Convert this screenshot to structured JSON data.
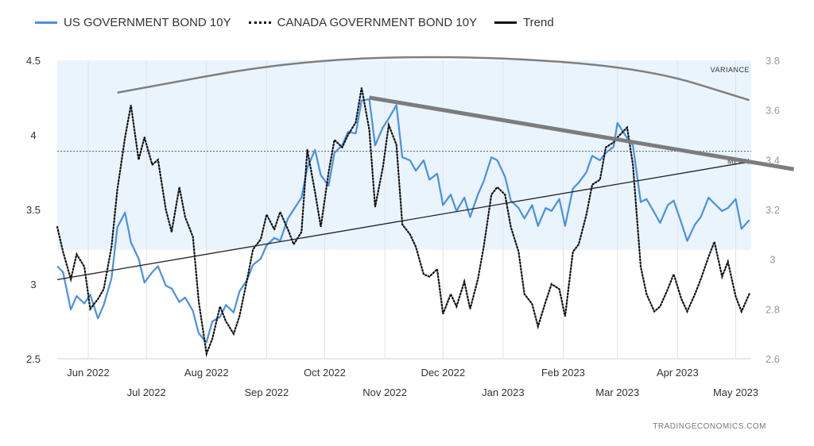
{
  "legend": {
    "us_label": "US GOVERNMENT BOND 10Y",
    "canada_label": "CANADA GOVERNMENT BOND 10Y",
    "trend_label": "Trend"
  },
  "credit": "TRADINGECONOMICS.COM",
  "annotations": {
    "variance": "VARIANCE",
    "mean": "MEAN"
  },
  "colors": {
    "us": "#4a90e2",
    "canada": "#111111",
    "trend": "#222222",
    "band": "#eaf4fd",
    "variance_arc": "#7f7f7f"
  },
  "chart_data": {
    "type": "line",
    "x_unit": "date",
    "xlim": [
      "2022-05-16",
      "2023-05-09"
    ],
    "x_ticks": [
      {
        "label": "Jun 2022",
        "date": "2022-06-01",
        "row": 1
      },
      {
        "label": "Jul 2022",
        "date": "2022-07-01",
        "row": 2
      },
      {
        "label": "Aug 2022",
        "date": "2022-08-01",
        "row": 1
      },
      {
        "label": "Sep 2022",
        "date": "2022-09-01",
        "row": 2
      },
      {
        "label": "Oct 2022",
        "date": "2022-10-01",
        "row": 1
      },
      {
        "label": "Nov 2022",
        "date": "2022-11-01",
        "row": 2
      },
      {
        "label": "Dec 2022",
        "date": "2022-12-01",
        "row": 1
      },
      {
        "label": "Jan 2023",
        "date": "2023-01-01",
        "row": 2
      },
      {
        "label": "Feb 2023",
        "date": "2023-02-01",
        "row": 1
      },
      {
        "label": "Mar 2023",
        "date": "2023-03-01",
        "row": 2
      },
      {
        "label": "Apr 2023",
        "date": "2023-04-01",
        "row": 1
      },
      {
        "label": "May 2023",
        "date": "2023-05-01",
        "row": 2
      }
    ],
    "y_left": {
      "min": 2.5,
      "max": 4.5,
      "ticks": [
        "2.5",
        "3",
        "3.5",
        "4",
        "4.5"
      ]
    },
    "y_right": {
      "min": 2.6,
      "max": 3.8,
      "ticks": [
        "2.6",
        "2.8",
        "3",
        "3.2",
        "3.4",
        "3.6",
        "3.8"
      ]
    },
    "grid": "vertical",
    "legend_position": "top-left",
    "band": {
      "axis": "left",
      "lower": 3.23,
      "upper": 4.5
    },
    "mean": {
      "axis": "left",
      "value": 3.89
    },
    "series": [
      {
        "name": "US GOVERNMENT BOND 10Y",
        "axis": "left",
        "style": "solid",
        "points": [
          [
            "2022-05-16",
            3.12
          ],
          [
            "2022-05-19",
            3.08
          ],
          [
            "2022-05-23",
            2.83
          ],
          [
            "2022-05-26",
            2.92
          ],
          [
            "2022-05-30",
            2.87
          ],
          [
            "2022-06-02",
            2.93
          ],
          [
            "2022-06-06",
            2.77
          ],
          [
            "2022-06-09",
            2.86
          ],
          [
            "2022-06-13",
            3.04
          ],
          [
            "2022-06-16",
            3.38
          ],
          [
            "2022-06-20",
            3.48
          ],
          [
            "2022-06-23",
            3.28
          ],
          [
            "2022-06-27",
            3.17
          ],
          [
            "2022-06-30",
            3.01
          ],
          [
            "2022-07-04",
            3.08
          ],
          [
            "2022-07-07",
            3.12
          ],
          [
            "2022-07-11",
            2.99
          ],
          [
            "2022-07-14",
            2.97
          ],
          [
            "2022-07-18",
            2.88
          ],
          [
            "2022-07-21",
            2.91
          ],
          [
            "2022-07-25",
            2.82
          ],
          [
            "2022-07-28",
            2.67
          ],
          [
            "2022-08-01",
            2.61
          ],
          [
            "2022-08-04",
            2.75
          ],
          [
            "2022-08-08",
            2.78
          ],
          [
            "2022-08-11",
            2.86
          ],
          [
            "2022-08-15",
            2.81
          ],
          [
            "2022-08-18",
            2.95
          ],
          [
            "2022-08-22",
            3.03
          ],
          [
            "2022-08-25",
            3.13
          ],
          [
            "2022-08-29",
            3.17
          ],
          [
            "2022-09-01",
            3.26
          ],
          [
            "2022-09-05",
            3.31
          ],
          [
            "2022-09-08",
            3.29
          ],
          [
            "2022-09-12",
            3.44
          ],
          [
            "2022-09-15",
            3.5
          ],
          [
            "2022-09-19",
            3.58
          ],
          [
            "2022-09-22",
            3.78
          ],
          [
            "2022-09-26",
            3.9
          ],
          [
            "2022-09-29",
            3.73
          ],
          [
            "2022-10-03",
            3.66
          ],
          [
            "2022-10-06",
            3.88
          ],
          [
            "2022-10-10",
            3.93
          ],
          [
            "2022-10-13",
            4.02
          ],
          [
            "2022-10-17",
            4.01
          ],
          [
            "2022-10-20",
            4.23
          ],
          [
            "2022-10-24",
            4.24
          ],
          [
            "2022-10-27",
            3.93
          ],
          [
            "2022-10-31",
            4.05
          ],
          [
            "2022-11-03",
            4.11
          ],
          [
            "2022-11-07",
            4.2
          ],
          [
            "2022-11-10",
            3.85
          ],
          [
            "2022-11-14",
            3.83
          ],
          [
            "2022-11-17",
            3.76
          ],
          [
            "2022-11-21",
            3.83
          ],
          [
            "2022-11-24",
            3.7
          ],
          [
            "2022-11-28",
            3.74
          ],
          [
            "2022-12-01",
            3.53
          ],
          [
            "2022-12-05",
            3.6
          ],
          [
            "2022-12-08",
            3.49
          ],
          [
            "2022-12-12",
            3.58
          ],
          [
            "2022-12-15",
            3.45
          ],
          [
            "2022-12-19",
            3.6
          ],
          [
            "2022-12-22",
            3.69
          ],
          [
            "2022-12-26",
            3.85
          ],
          [
            "2022-12-29",
            3.83
          ],
          [
            "2023-01-02",
            3.72
          ],
          [
            "2023-01-05",
            3.56
          ],
          [
            "2023-01-09",
            3.51
          ],
          [
            "2023-01-12",
            3.44
          ],
          [
            "2023-01-16",
            3.53
          ],
          [
            "2023-01-19",
            3.39
          ],
          [
            "2023-01-23",
            3.51
          ],
          [
            "2023-01-26",
            3.49
          ],
          [
            "2023-01-30",
            3.57
          ],
          [
            "2023-02-02",
            3.39
          ],
          [
            "2023-02-06",
            3.64
          ],
          [
            "2023-02-09",
            3.68
          ],
          [
            "2023-02-13",
            3.75
          ],
          [
            "2023-02-16",
            3.86
          ],
          [
            "2023-02-20",
            3.83
          ],
          [
            "2023-02-23",
            3.88
          ],
          [
            "2023-02-27",
            3.92
          ],
          [
            "2023-03-01",
            4.08
          ],
          [
            "2023-03-06",
            3.98
          ],
          [
            "2023-03-09",
            3.93
          ],
          [
            "2023-03-13",
            3.55
          ],
          [
            "2023-03-16",
            3.57
          ],
          [
            "2023-03-20",
            3.48
          ],
          [
            "2023-03-23",
            3.41
          ],
          [
            "2023-03-27",
            3.53
          ],
          [
            "2023-03-30",
            3.56
          ],
          [
            "2023-04-03",
            3.41
          ],
          [
            "2023-04-06",
            3.29
          ],
          [
            "2023-04-10",
            3.4
          ],
          [
            "2023-04-13",
            3.45
          ],
          [
            "2023-04-17",
            3.58
          ],
          [
            "2023-04-20",
            3.54
          ],
          [
            "2023-04-24",
            3.49
          ],
          [
            "2023-04-27",
            3.51
          ],
          [
            "2023-05-01",
            3.57
          ],
          [
            "2023-05-04",
            3.37
          ],
          [
            "2023-05-08",
            3.43
          ]
        ]
      },
      {
        "name": "CANADA GOVERNMENT BOND 10Y",
        "axis": "right",
        "style": "dotted",
        "points": [
          [
            "2022-05-16",
            3.13
          ],
          [
            "2022-05-19",
            3.03
          ],
          [
            "2022-05-23",
            2.92
          ],
          [
            "2022-05-26",
            3.02
          ],
          [
            "2022-05-30",
            2.97
          ],
          [
            "2022-06-02",
            2.8
          ],
          [
            "2022-06-06",
            2.84
          ],
          [
            "2022-06-09",
            2.88
          ],
          [
            "2022-06-13",
            3.05
          ],
          [
            "2022-06-16",
            3.28
          ],
          [
            "2022-06-20",
            3.49
          ],
          [
            "2022-06-23",
            3.62
          ],
          [
            "2022-06-27",
            3.4
          ],
          [
            "2022-06-30",
            3.49
          ],
          [
            "2022-07-04",
            3.38
          ],
          [
            "2022-07-07",
            3.4
          ],
          [
            "2022-07-11",
            3.2
          ],
          [
            "2022-07-14",
            3.11
          ],
          [
            "2022-07-18",
            3.29
          ],
          [
            "2022-07-21",
            3.17
          ],
          [
            "2022-07-25",
            3.09
          ],
          [
            "2022-07-28",
            2.83
          ],
          [
            "2022-08-01",
            2.62
          ],
          [
            "2022-08-04",
            2.68
          ],
          [
            "2022-08-08",
            2.81
          ],
          [
            "2022-08-11",
            2.75
          ],
          [
            "2022-08-15",
            2.7
          ],
          [
            "2022-08-18",
            2.77
          ],
          [
            "2022-08-22",
            2.92
          ],
          [
            "2022-08-25",
            3.04
          ],
          [
            "2022-08-29",
            3.08
          ],
          [
            "2022-09-01",
            3.18
          ],
          [
            "2022-09-05",
            3.12
          ],
          [
            "2022-09-08",
            3.19
          ],
          [
            "2022-09-12",
            3.12
          ],
          [
            "2022-09-15",
            3.06
          ],
          [
            "2022-09-19",
            3.11
          ],
          [
            "2022-09-22",
            3.44
          ],
          [
            "2022-09-26",
            3.27
          ],
          [
            "2022-09-29",
            3.13
          ],
          [
            "2022-10-03",
            3.35
          ],
          [
            "2022-10-06",
            3.48
          ],
          [
            "2022-10-10",
            3.45
          ],
          [
            "2022-10-13",
            3.5
          ],
          [
            "2022-10-17",
            3.55
          ],
          [
            "2022-10-20",
            3.69
          ],
          [
            "2022-10-24",
            3.52
          ],
          [
            "2022-10-27",
            3.21
          ],
          [
            "2022-10-31",
            3.37
          ],
          [
            "2022-11-03",
            3.54
          ],
          [
            "2022-11-07",
            3.46
          ],
          [
            "2022-11-10",
            3.14
          ],
          [
            "2022-11-14",
            3.1
          ],
          [
            "2022-11-17",
            3.05
          ],
          [
            "2022-11-21",
            2.94
          ],
          [
            "2022-11-24",
            2.93
          ],
          [
            "2022-11-28",
            2.96
          ],
          [
            "2022-12-01",
            2.78
          ],
          [
            "2022-12-05",
            2.86
          ],
          [
            "2022-12-08",
            2.81
          ],
          [
            "2022-12-12",
            2.91
          ],
          [
            "2022-12-15",
            2.8
          ],
          [
            "2022-12-19",
            2.92
          ],
          [
            "2022-12-22",
            3.05
          ],
          [
            "2022-12-26",
            3.26
          ],
          [
            "2022-12-29",
            3.29
          ],
          [
            "2023-01-02",
            3.26
          ],
          [
            "2023-01-05",
            3.13
          ],
          [
            "2023-01-09",
            3.03
          ],
          [
            "2023-01-12",
            2.86
          ],
          [
            "2023-01-16",
            2.82
          ],
          [
            "2023-01-19",
            2.73
          ],
          [
            "2023-01-23",
            2.83
          ],
          [
            "2023-01-26",
            2.9
          ],
          [
            "2023-01-30",
            2.88
          ],
          [
            "2023-02-02",
            2.77
          ],
          [
            "2023-02-06",
            3.03
          ],
          [
            "2023-02-09",
            3.06
          ],
          [
            "2023-02-13",
            3.18
          ],
          [
            "2023-02-16",
            3.3
          ],
          [
            "2023-02-20",
            3.32
          ],
          [
            "2023-02-23",
            3.45
          ],
          [
            "2023-02-27",
            3.47
          ],
          [
            "2023-03-01",
            3.49
          ],
          [
            "2023-03-06",
            3.53
          ],
          [
            "2023-03-09",
            3.38
          ],
          [
            "2023-03-13",
            2.97
          ],
          [
            "2023-03-16",
            2.86
          ],
          [
            "2023-03-20",
            2.79
          ],
          [
            "2023-03-23",
            2.81
          ],
          [
            "2023-03-27",
            2.88
          ],
          [
            "2023-03-30",
            2.94
          ],
          [
            "2023-04-03",
            2.84
          ],
          [
            "2023-04-06",
            2.79
          ],
          [
            "2023-04-10",
            2.86
          ],
          [
            "2023-04-13",
            2.92
          ],
          [
            "2023-04-17",
            3.01
          ],
          [
            "2023-04-20",
            3.07
          ],
          [
            "2023-04-24",
            2.93
          ],
          [
            "2023-04-27",
            2.99
          ],
          [
            "2023-05-01",
            2.85
          ],
          [
            "2023-05-04",
            2.79
          ],
          [
            "2023-05-08",
            2.86
          ]
        ]
      },
      {
        "name": "Trend",
        "axis": "left",
        "style": "solid",
        "points": [
          [
            "2022-05-16",
            3.03
          ],
          [
            "2023-05-08",
            3.82
          ]
        ]
      }
    ],
    "overlays": [
      {
        "kind": "declining-line",
        "axis": "left",
        "style": "thick-grey",
        "points": [
          [
            "2022-10-24",
            4.25
          ],
          [
            "2023-05-31",
            3.77
          ]
        ]
      },
      {
        "kind": "variance-arc",
        "axis": "right",
        "points": [
          [
            "2022-06-16",
            3.67
          ],
          [
            "2022-09-15",
            3.8
          ],
          [
            "2022-12-15",
            3.82
          ],
          [
            "2023-03-15",
            3.77
          ],
          [
            "2023-05-08",
            3.64
          ]
        ]
      }
    ]
  }
}
